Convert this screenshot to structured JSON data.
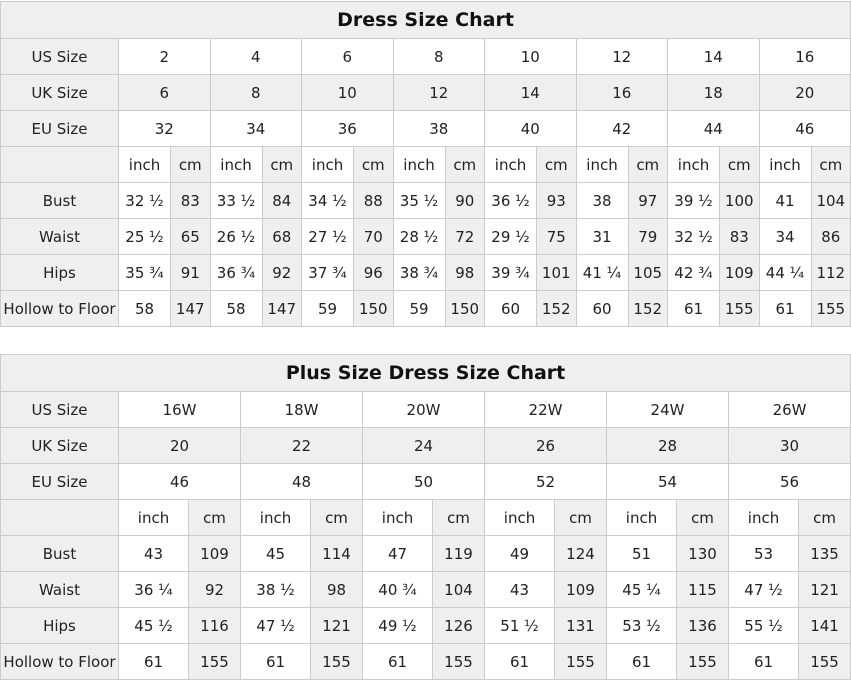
{
  "charts": [
    {
      "title": "Dress Size Chart",
      "us_label": "US Size",
      "uk_label": "UK Size",
      "eu_label": "EU Size",
      "us": [
        "2",
        "4",
        "6",
        "8",
        "10",
        "12",
        "14",
        "16"
      ],
      "uk": [
        "6",
        "8",
        "10",
        "12",
        "14",
        "16",
        "18",
        "20"
      ],
      "eu": [
        "32",
        "34",
        "36",
        "38",
        "40",
        "42",
        "44",
        "46"
      ],
      "unit_inch": "inch",
      "unit_cm": "cm",
      "measures": [
        {
          "label": "Bust",
          "values": [
            [
              "32 ½",
              "83"
            ],
            [
              "33 ½",
              "84"
            ],
            [
              "34 ½",
              "88"
            ],
            [
              "35 ½",
              "90"
            ],
            [
              "36 ½",
              "93"
            ],
            [
              "38",
              "97"
            ],
            [
              "39 ½",
              "100"
            ],
            [
              "41",
              "104"
            ]
          ]
        },
        {
          "label": "Waist",
          "values": [
            [
              "25 ½",
              "65"
            ],
            [
              "26 ½",
              "68"
            ],
            [
              "27 ½",
              "70"
            ],
            [
              "28 ½",
              "72"
            ],
            [
              "29 ½",
              "75"
            ],
            [
              "31",
              "79"
            ],
            [
              "32 ½",
              "83"
            ],
            [
              "34",
              "86"
            ]
          ]
        },
        {
          "label": "Hips",
          "values": [
            [
              "35 ¾",
              "91"
            ],
            [
              "36 ¾",
              "92"
            ],
            [
              "37 ¾",
              "96"
            ],
            [
              "38 ¾",
              "98"
            ],
            [
              "39 ¾",
              "101"
            ],
            [
              "41 ¼",
              "105"
            ],
            [
              "42 ¾",
              "109"
            ],
            [
              "44 ¼",
              "112"
            ]
          ]
        },
        {
          "label": "Hollow to Floor",
          "values": [
            [
              "58",
              "147"
            ],
            [
              "58",
              "147"
            ],
            [
              "59",
              "150"
            ],
            [
              "59",
              "150"
            ],
            [
              "60",
              "152"
            ],
            [
              "60",
              "152"
            ],
            [
              "61",
              "155"
            ],
            [
              "61",
              "155"
            ]
          ]
        }
      ]
    },
    {
      "title": "Plus Size Dress Size Chart",
      "us_label": "US Size",
      "uk_label": "UK Size",
      "eu_label": "EU Size",
      "us": [
        "16W",
        "18W",
        "20W",
        "22W",
        "24W",
        "26W"
      ],
      "uk": [
        "20",
        "22",
        "24",
        "26",
        "28",
        "30"
      ],
      "eu": [
        "46",
        "48",
        "50",
        "52",
        "54",
        "56"
      ],
      "unit_inch": "inch",
      "unit_cm": "cm",
      "measures": [
        {
          "label": "Bust",
          "values": [
            [
              "43",
              "109"
            ],
            [
              "45",
              "114"
            ],
            [
              "47",
              "119"
            ],
            [
              "49",
              "124"
            ],
            [
              "51",
              "130"
            ],
            [
              "53",
              "135"
            ]
          ]
        },
        {
          "label": "Waist",
          "values": [
            [
              "36 ¼",
              "92"
            ],
            [
              "38 ½",
              "98"
            ],
            [
              "40 ¾",
              "104"
            ],
            [
              "43",
              "109"
            ],
            [
              "45 ¼",
              "115"
            ],
            [
              "47 ½",
              "121"
            ]
          ]
        },
        {
          "label": "Hips",
          "values": [
            [
              "45 ½",
              "116"
            ],
            [
              "47 ½",
              "121"
            ],
            [
              "49 ½",
              "126"
            ],
            [
              "51 ½",
              "131"
            ],
            [
              "53 ½",
              "136"
            ],
            [
              "55 ½",
              "141"
            ]
          ]
        },
        {
          "label": "Hollow to Floor",
          "values": [
            [
              "61",
              "155"
            ],
            [
              "61",
              "155"
            ],
            [
              "61",
              "155"
            ],
            [
              "61",
              "155"
            ],
            [
              "61",
              "155"
            ],
            [
              "61",
              "155"
            ]
          ]
        }
      ]
    }
  ]
}
